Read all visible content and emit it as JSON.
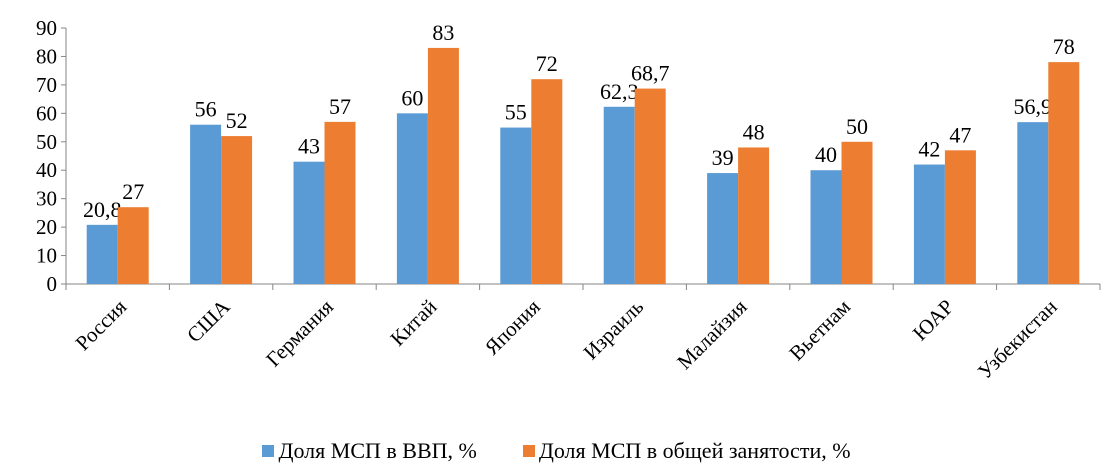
{
  "chart_data": {
    "type": "bar",
    "categories": [
      "Россия",
      "США",
      "Германия",
      "Китай",
      "Япония",
      "Израиль",
      "Малайзия",
      "Вьетнам",
      "ЮАР",
      "Узбекистан"
    ],
    "series": [
      {
        "name": "Доля МСП в ВВП, %",
        "color": "#5B9BD5",
        "values": [
          20.8,
          56,
          43,
          60,
          55,
          62.3,
          39,
          40,
          42,
          56.9
        ],
        "labels": [
          "20,8",
          "56",
          "43",
          "60",
          "55",
          "62,3",
          "39",
          "40",
          "42",
          "56,9"
        ]
      },
      {
        "name": "Доля МСП в общей занятости, %",
        "color": "#ED7D31",
        "values": [
          27,
          52,
          57,
          83,
          72,
          68.7,
          48,
          50,
          47,
          78
        ],
        "labels": [
          "27",
          "52",
          "57",
          "83",
          "72",
          "68,7",
          "48",
          "50",
          "47",
          "78"
        ]
      }
    ],
    "yticks": [
      "0",
      "10",
      "20",
      "30",
      "40",
      "50",
      "60",
      "70",
      "80",
      "90"
    ],
    "ylim": [
      0,
      90
    ],
    "grid": false,
    "legend_position": "bottom"
  }
}
